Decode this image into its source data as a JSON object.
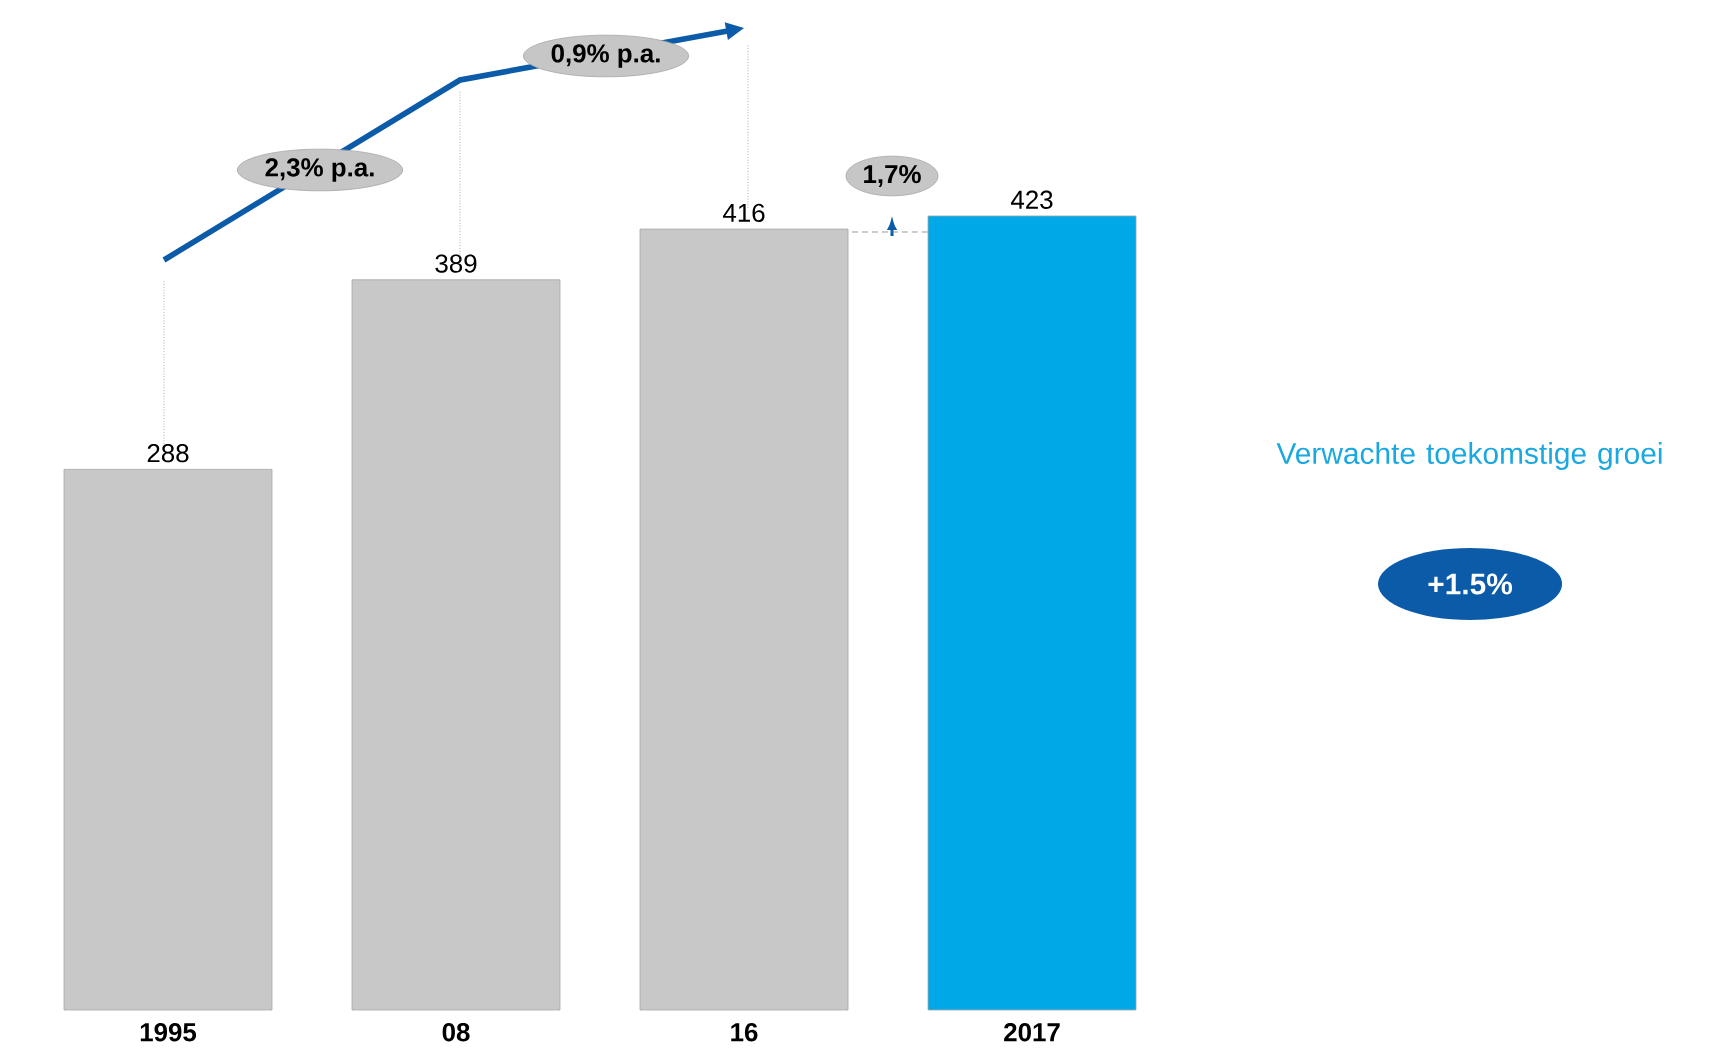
{
  "chart_data": {
    "type": "bar",
    "categories": [
      "1995",
      "08",
      "16",
      "2017"
    ],
    "values": [
      288,
      389,
      416,
      423
    ],
    "colors": [
      "#c8c8c8",
      "#c8c8c8",
      "#c8c8c8",
      "#00a8e8"
    ],
    "data_labels": true,
    "annotations": [
      "2,3% p.a.",
      "0,9% p.a.",
      "1,7%",
      "Verwachte toekomstige groei",
      "+1.5%"
    ]
  }
}
